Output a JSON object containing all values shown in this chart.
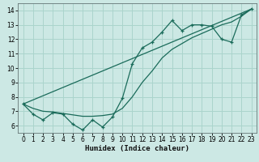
{
  "title": "",
  "xlabel": "Humidex (Indice chaleur)",
  "bg_color": "#cce8e4",
  "grid_color": "#aad4cc",
  "line_color": "#1a6b5a",
  "xlim": [
    -0.5,
    23.5
  ],
  "ylim": [
    5.5,
    14.5
  ],
  "xticks": [
    0,
    1,
    2,
    3,
    4,
    5,
    6,
    7,
    8,
    9,
    10,
    11,
    12,
    13,
    14,
    15,
    16,
    17,
    18,
    19,
    20,
    21,
    22,
    23
  ],
  "yticks": [
    6,
    7,
    8,
    9,
    10,
    11,
    12,
    13,
    14
  ],
  "series1_x": [
    0,
    1,
    2,
    3,
    4,
    5,
    6,
    7,
    8,
    9,
    10,
    11,
    12,
    13,
    14,
    15,
    16,
    17,
    18,
    19,
    20,
    21,
    22,
    23
  ],
  "series1_y": [
    7.5,
    6.8,
    6.4,
    6.9,
    6.8,
    6.1,
    5.7,
    6.4,
    5.9,
    6.6,
    7.9,
    10.3,
    11.4,
    11.8,
    12.5,
    13.3,
    12.6,
    13.0,
    13.0,
    12.9,
    12.0,
    11.8,
    13.7,
    14.1
  ],
  "series2_x": [
    0,
    23
  ],
  "series2_y": [
    7.5,
    14.1
  ],
  "series3_x": [
    0,
    1,
    2,
    3,
    4,
    5,
    6,
    7,
    8,
    9,
    10,
    11,
    12,
    13,
    14,
    15,
    16,
    17,
    18,
    19,
    20,
    21,
    22,
    23
  ],
  "series3_y": [
    7.5,
    7.2,
    7.0,
    6.95,
    6.85,
    6.75,
    6.65,
    6.65,
    6.7,
    6.8,
    7.2,
    8.0,
    9.0,
    9.8,
    10.7,
    11.3,
    11.7,
    12.1,
    12.4,
    12.7,
    13.0,
    13.2,
    13.6,
    14.1
  ],
  "tick_fontsize": 5.5,
  "xlabel_fontsize": 6.5
}
